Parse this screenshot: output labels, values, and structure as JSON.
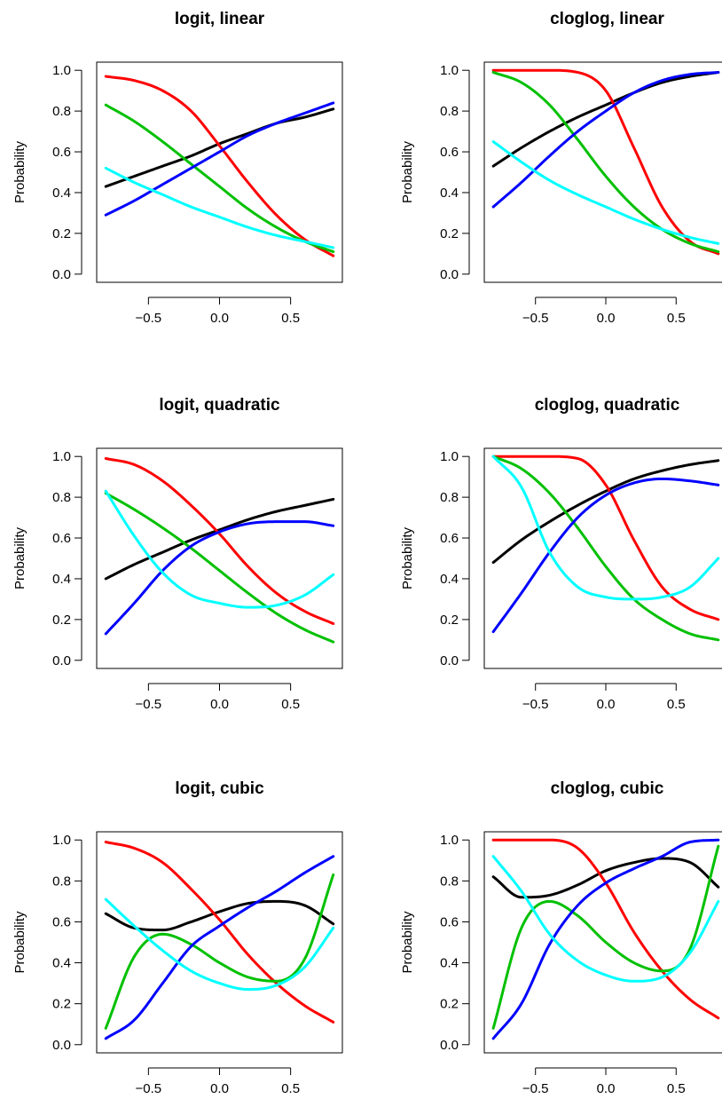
{
  "chart_data": [
    {
      "type": "line",
      "title": "logit, linear",
      "xlabel": "",
      "ylabel": "Probability",
      "xlim": [
        -0.8,
        0.8
      ],
      "ylim": [
        0.0,
        1.0
      ],
      "xticks": [
        -0.5,
        0.0,
        0.5
      ],
      "xtick_labels": [
        "−0.5",
        "0.0",
        "0.5"
      ],
      "yticks": [
        0.0,
        0.2,
        0.4,
        0.6,
        0.8,
        1.0
      ],
      "ytick_labels": [
        "0.0",
        "0.2",
        "0.4",
        "0.6",
        "0.8",
        "1.0"
      ],
      "grid": false,
      "x": [
        -0.8,
        -0.6,
        -0.4,
        -0.2,
        0.0,
        0.2,
        0.4,
        0.6,
        0.8
      ],
      "series": [
        {
          "color": "#000000",
          "values": [
            0.43,
            0.48,
            0.53,
            0.58,
            0.64,
            0.69,
            0.74,
            0.77,
            0.81
          ]
        },
        {
          "color": "#ff0000",
          "values": [
            0.97,
            0.95,
            0.9,
            0.8,
            0.63,
            0.45,
            0.29,
            0.17,
            0.09
          ]
        },
        {
          "color": "#00c000",
          "values": [
            0.83,
            0.75,
            0.65,
            0.54,
            0.43,
            0.32,
            0.23,
            0.16,
            0.11
          ]
        },
        {
          "color": "#0000ff",
          "values": [
            0.29,
            0.36,
            0.44,
            0.52,
            0.6,
            0.68,
            0.74,
            0.79,
            0.84
          ]
        },
        {
          "color": "#00ffff",
          "values": [
            0.52,
            0.45,
            0.39,
            0.33,
            0.28,
            0.23,
            0.19,
            0.16,
            0.13
          ]
        }
      ]
    },
    {
      "type": "line",
      "title": "cloglog, linear",
      "xlabel": "",
      "ylabel": "Probability",
      "xlim": [
        -0.8,
        0.8
      ],
      "ylim": [
        0.0,
        1.0
      ],
      "xticks": [
        -0.5,
        0.0,
        0.5
      ],
      "xtick_labels": [
        "−0.5",
        "0.0",
        "0.5"
      ],
      "yticks": [
        0.0,
        0.2,
        0.4,
        0.6,
        0.8,
        1.0
      ],
      "ytick_labels": [
        "0.0",
        "0.2",
        "0.4",
        "0.6",
        "0.8",
        "1.0"
      ],
      "grid": false,
      "x": [
        -0.8,
        -0.6,
        -0.4,
        -0.2,
        0.0,
        0.2,
        0.4,
        0.6,
        0.8
      ],
      "series": [
        {
          "color": "#000000",
          "values": [
            0.53,
            0.62,
            0.7,
            0.77,
            0.83,
            0.89,
            0.94,
            0.97,
            0.99
          ]
        },
        {
          "color": "#ff0000",
          "values": [
            1.0,
            1.0,
            1.0,
            0.99,
            0.9,
            0.62,
            0.33,
            0.16,
            0.1
          ]
        },
        {
          "color": "#00c000",
          "values": [
            0.99,
            0.94,
            0.83,
            0.66,
            0.48,
            0.33,
            0.22,
            0.15,
            0.11
          ]
        },
        {
          "color": "#0000ff",
          "values": [
            0.33,
            0.45,
            0.58,
            0.7,
            0.8,
            0.89,
            0.95,
            0.98,
            0.99
          ]
        },
        {
          "color": "#00ffff",
          "values": [
            0.65,
            0.55,
            0.46,
            0.39,
            0.33,
            0.27,
            0.22,
            0.18,
            0.15
          ]
        }
      ]
    },
    {
      "type": "line",
      "title": "logit, quadratic",
      "xlabel": "",
      "ylabel": "Probability",
      "xlim": [
        -0.8,
        0.8
      ],
      "ylim": [
        0.0,
        1.0
      ],
      "xticks": [
        -0.5,
        0.0,
        0.5
      ],
      "xtick_labels": [
        "−0.5",
        "0.0",
        "0.5"
      ],
      "yticks": [
        0.0,
        0.2,
        0.4,
        0.6,
        0.8,
        1.0
      ],
      "ytick_labels": [
        "0.0",
        "0.2",
        "0.4",
        "0.6",
        "0.8",
        "1.0"
      ],
      "grid": false,
      "x": [
        -0.8,
        -0.6,
        -0.4,
        -0.2,
        0.0,
        0.2,
        0.4,
        0.6,
        0.8
      ],
      "series": [
        {
          "color": "#000000",
          "values": [
            0.4,
            0.47,
            0.53,
            0.59,
            0.64,
            0.69,
            0.73,
            0.76,
            0.79
          ]
        },
        {
          "color": "#ff0000",
          "values": [
            0.99,
            0.96,
            0.88,
            0.76,
            0.62,
            0.46,
            0.33,
            0.24,
            0.18
          ]
        },
        {
          "color": "#00c000",
          "values": [
            0.82,
            0.74,
            0.65,
            0.55,
            0.44,
            0.33,
            0.23,
            0.15,
            0.09
          ]
        },
        {
          "color": "#0000ff",
          "values": [
            0.13,
            0.28,
            0.44,
            0.56,
            0.63,
            0.67,
            0.68,
            0.68,
            0.66
          ]
        },
        {
          "color": "#00ffff",
          "values": [
            0.83,
            0.61,
            0.43,
            0.32,
            0.28,
            0.26,
            0.27,
            0.32,
            0.42
          ]
        }
      ]
    },
    {
      "type": "line",
      "title": "cloglog, quadratic",
      "xlabel": "",
      "ylabel": "Probability",
      "xlim": [
        -0.8,
        0.8
      ],
      "ylim": [
        0.0,
        1.0
      ],
      "xticks": [
        -0.5,
        0.0,
        0.5
      ],
      "xtick_labels": [
        "−0.5",
        "0.0",
        "0.5"
      ],
      "yticks": [
        0.0,
        0.2,
        0.4,
        0.6,
        0.8,
        1.0
      ],
      "ytick_labels": [
        "0.0",
        "0.2",
        "0.4",
        "0.6",
        "0.8",
        "1.0"
      ],
      "grid": false,
      "x": [
        -0.8,
        -0.6,
        -0.4,
        -0.2,
        0.0,
        0.2,
        0.4,
        0.6,
        0.8
      ],
      "series": [
        {
          "color": "#000000",
          "values": [
            0.48,
            0.59,
            0.68,
            0.76,
            0.83,
            0.89,
            0.93,
            0.96,
            0.98
          ]
        },
        {
          "color": "#ff0000",
          "values": [
            1.0,
            1.0,
            1.0,
            0.99,
            0.86,
            0.59,
            0.36,
            0.25,
            0.2
          ]
        },
        {
          "color": "#00c000",
          "values": [
            1.0,
            0.94,
            0.82,
            0.65,
            0.46,
            0.3,
            0.2,
            0.13,
            0.1
          ]
        },
        {
          "color": "#0000ff",
          "values": [
            0.14,
            0.33,
            0.53,
            0.7,
            0.81,
            0.87,
            0.89,
            0.88,
            0.86
          ]
        },
        {
          "color": "#00ffff",
          "values": [
            1.0,
            0.85,
            0.53,
            0.36,
            0.31,
            0.3,
            0.31,
            0.36,
            0.5
          ]
        }
      ]
    },
    {
      "type": "line",
      "title": "logit, cubic",
      "xlabel": "",
      "ylabel": "Probability",
      "xlim": [
        -0.8,
        0.8
      ],
      "ylim": [
        0.0,
        1.0
      ],
      "xticks": [
        -0.5,
        0.0,
        0.5
      ],
      "xtick_labels": [
        "−0.5",
        "0.0",
        "0.5"
      ],
      "yticks": [
        0.0,
        0.2,
        0.4,
        0.6,
        0.8,
        1.0
      ],
      "ytick_labels": [
        "0.0",
        "0.2",
        "0.4",
        "0.6",
        "0.8",
        "1.0"
      ],
      "grid": false,
      "x": [
        -0.8,
        -0.6,
        -0.4,
        -0.2,
        0.0,
        0.2,
        0.4,
        0.6,
        0.8
      ],
      "series": [
        {
          "color": "#000000",
          "values": [
            0.64,
            0.57,
            0.56,
            0.6,
            0.65,
            0.69,
            0.7,
            0.68,
            0.59
          ]
        },
        {
          "color": "#ff0000",
          "values": [
            0.99,
            0.96,
            0.89,
            0.76,
            0.61,
            0.44,
            0.3,
            0.19,
            0.11
          ]
        },
        {
          "color": "#00c000",
          "values": [
            0.08,
            0.43,
            0.54,
            0.49,
            0.4,
            0.33,
            0.31,
            0.42,
            0.83
          ]
        },
        {
          "color": "#0000ff",
          "values": [
            0.03,
            0.12,
            0.3,
            0.48,
            0.58,
            0.67,
            0.75,
            0.84,
            0.92
          ]
        },
        {
          "color": "#00ffff",
          "values": [
            0.71,
            0.58,
            0.46,
            0.36,
            0.3,
            0.27,
            0.29,
            0.38,
            0.57
          ]
        }
      ]
    },
    {
      "type": "line",
      "title": "cloglog, cubic",
      "xlabel": "",
      "ylabel": "Probability",
      "xlim": [
        -0.8,
        0.8
      ],
      "ylim": [
        0.0,
        1.0
      ],
      "xticks": [
        -0.5,
        0.0,
        0.5
      ],
      "xtick_labels": [
        "−0.5",
        "0.0",
        "0.5"
      ],
      "yticks": [
        0.0,
        0.2,
        0.4,
        0.6,
        0.8,
        1.0
      ],
      "ytick_labels": [
        "0.0",
        "0.2",
        "0.4",
        "0.6",
        "0.8",
        "1.0"
      ],
      "grid": false,
      "x": [
        -0.8,
        -0.6,
        -0.4,
        -0.2,
        0.0,
        0.2,
        0.4,
        0.6,
        0.8
      ],
      "series": [
        {
          "color": "#000000",
          "values": [
            0.82,
            0.72,
            0.73,
            0.78,
            0.85,
            0.89,
            0.91,
            0.89,
            0.77
          ]
        },
        {
          "color": "#ff0000",
          "values": [
            1.0,
            1.0,
            1.0,
            0.96,
            0.79,
            0.55,
            0.36,
            0.22,
            0.13
          ]
        },
        {
          "color": "#00c000",
          "values": [
            0.08,
            0.57,
            0.7,
            0.63,
            0.5,
            0.4,
            0.36,
            0.47,
            0.97
          ]
        },
        {
          "color": "#0000ff",
          "values": [
            0.03,
            0.2,
            0.49,
            0.68,
            0.79,
            0.86,
            0.92,
            0.99,
            1.0
          ]
        },
        {
          "color": "#00ffff",
          "values": [
            0.92,
            0.75,
            0.54,
            0.41,
            0.34,
            0.31,
            0.33,
            0.45,
            0.7
          ]
        }
      ]
    }
  ]
}
